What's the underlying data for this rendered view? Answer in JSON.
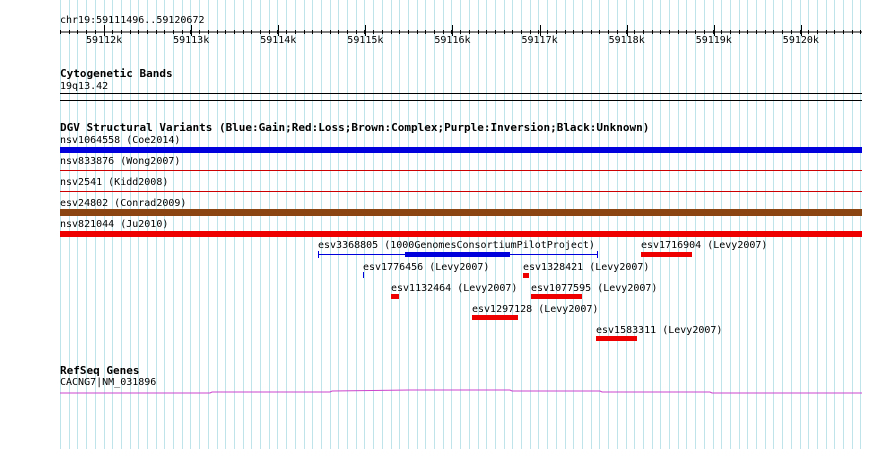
{
  "ruler": {
    "location": "chr19:59111496..59120672",
    "ticks": [
      "59112k",
      "59113k",
      "59114k",
      "59115k",
      "59116k",
      "59117k",
      "59118k",
      "59119k",
      "59120k"
    ]
  },
  "cytoband": {
    "title": "Cytogenetic Bands",
    "band": "19q13.42"
  },
  "dgv": {
    "title": "DGV Structural Variants (Blue:Gain;Red:Loss;Brown:Complex;Purple:Inversion;Black:Unknown)",
    "colors": {
      "gain": "#0000dd",
      "loss": "#ee0000",
      "complex": "#8b4513",
      "line_loss": "#cc0000"
    },
    "full_rows": [
      {
        "label": "nsv1064558 (Coe2014)"
      },
      {
        "label": "nsv833876 (Wong2007)"
      },
      {
        "label": "nsv2541 (Kidd2008)"
      },
      {
        "label": "esv24802 (Conrad2009)"
      },
      {
        "label": "nsv821044 (Ju2010)"
      }
    ],
    "features": [
      {
        "label": "esv3368805 (1000GenomesConsortiumPilotProject)"
      },
      {
        "label": "esv1716904 (Levy2007)"
      },
      {
        "label": "esv1776456 (Levy2007)"
      },
      {
        "label": "esv1328421 (Levy2007)"
      },
      {
        "label": "esv1132464 (Levy2007)"
      },
      {
        "label": "esv1077595 (Levy2007)"
      },
      {
        "label": "esv1297128 (Levy2007)"
      },
      {
        "label": "esv1583311 (Levy2007)"
      }
    ]
  },
  "refseq": {
    "title": "RefSeq Genes",
    "gene": "CACNG7|NM_031896",
    "color": "#cc44cc"
  }
}
